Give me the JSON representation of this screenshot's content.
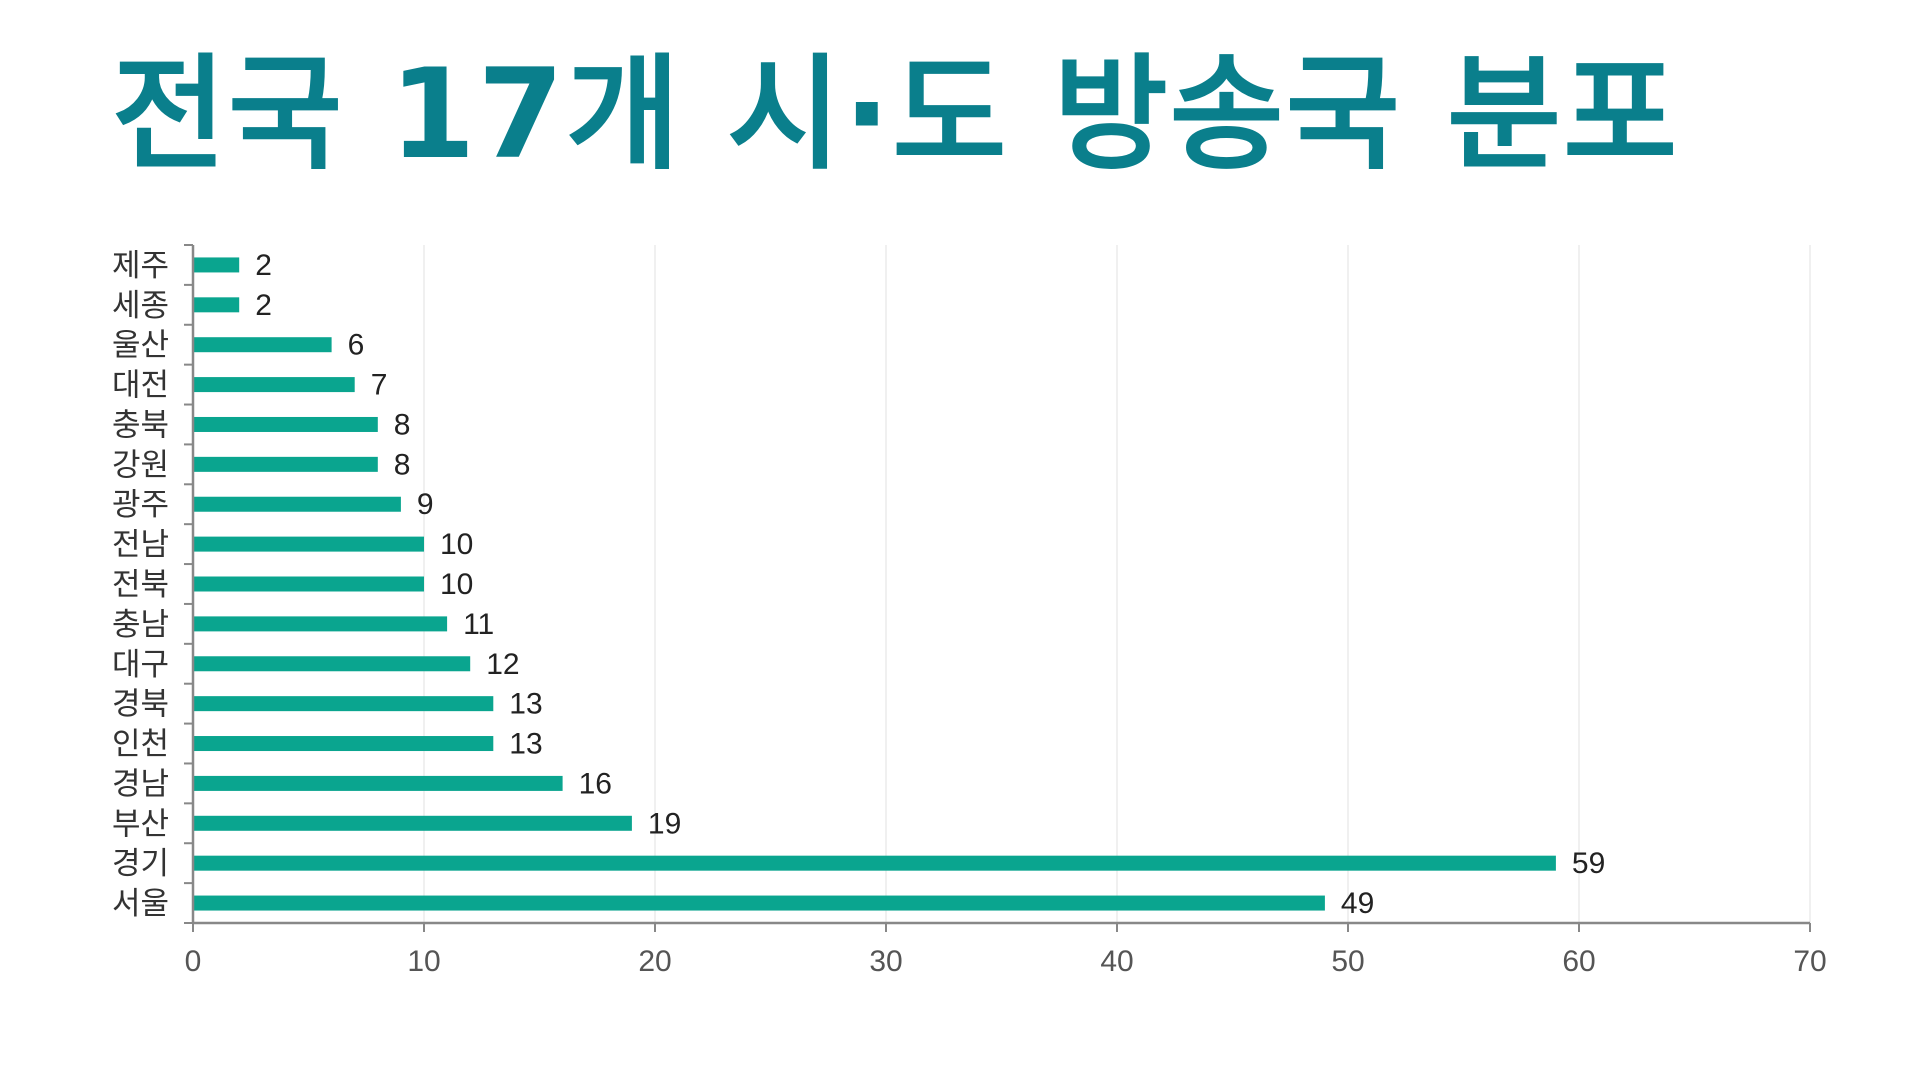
{
  "title": "전국 17개 시·도 방송국 분포",
  "colors": {
    "title": "#0a7f8c",
    "bar": "#0aa58f",
    "axis": "#888888",
    "grid": "#ececec"
  },
  "chart_data": {
    "type": "bar",
    "orientation": "horizontal",
    "categories": [
      "제주",
      "세종",
      "울산",
      "대전",
      "충북",
      "강원",
      "광주",
      "전남",
      "전북",
      "충남",
      "대구",
      "경북",
      "인천",
      "경남",
      "부산",
      "경기",
      "서울"
    ],
    "values": [
      2,
      2,
      6,
      7,
      8,
      8,
      9,
      10,
      10,
      11,
      12,
      13,
      13,
      16,
      19,
      59,
      49
    ],
    "xlim": [
      0,
      70
    ],
    "xticks": [
      "0",
      "10",
      "20",
      "30",
      "40",
      "50",
      "60",
      "70"
    ],
    "grid": true,
    "legend": "none",
    "data_labels": true
  }
}
